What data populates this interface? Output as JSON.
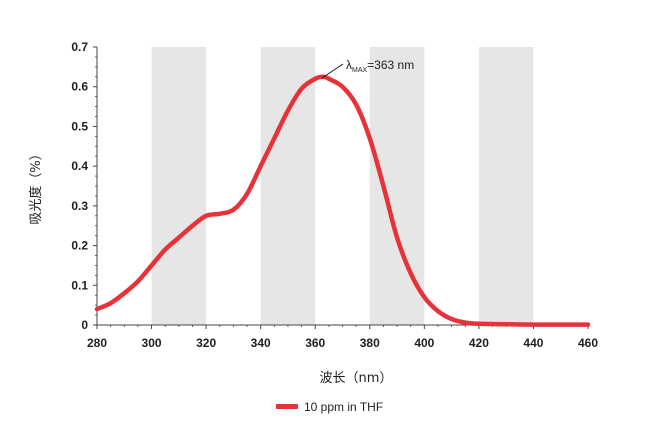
{
  "chart_data": {
    "type": "line",
    "title": "",
    "xlabel": "波长（nm）",
    "ylabel": "吸光度（%）",
    "xlim": [
      280,
      460
    ],
    "ylim": [
      0,
      0.7
    ],
    "x_ticks": [
      280,
      300,
      320,
      340,
      360,
      380,
      400,
      420,
      440,
      460
    ],
    "y_ticks": [
      0,
      0.1,
      0.2,
      0.3,
      0.4,
      0.5,
      0.6,
      0.7
    ],
    "x_tick_labels": [
      "280",
      "300",
      "320",
      "340",
      "360",
      "380",
      "400",
      "420",
      "440",
      "460"
    ],
    "y_tick_labels": [
      "0",
      "0.1",
      "0.2",
      "0.3",
      "0.4",
      "0.5",
      "0.6",
      "0.7"
    ],
    "shaded_bands": [
      [
        300,
        320
      ],
      [
        340,
        360
      ],
      [
        380,
        400
      ],
      [
        420,
        440
      ]
    ],
    "colors": {
      "series": "#e8323a",
      "band": "#e6e6e6",
      "axis": "#444444"
    },
    "series": [
      {
        "name": "10 ppm in THF",
        "x": [
          280,
          285,
          290,
          295,
          300,
          305,
          310,
          315,
          320,
          325,
          330,
          335,
          340,
          345,
          350,
          355,
          360,
          363,
          365,
          370,
          375,
          380,
          385,
          390,
          395,
          400,
          405,
          410,
          415,
          420,
          430,
          440,
          450,
          460
        ],
        "y": [
          0.04,
          0.055,
          0.08,
          0.11,
          0.15,
          0.19,
          0.22,
          0.25,
          0.275,
          0.28,
          0.29,
          0.33,
          0.4,
          0.47,
          0.54,
          0.595,
          0.62,
          0.625,
          0.62,
          0.6,
          0.555,
          0.47,
          0.35,
          0.22,
          0.13,
          0.07,
          0.035,
          0.015,
          0.006,
          0.003,
          0.002,
          0.001,
          0.001,
          0.001
        ]
      }
    ],
    "annotations": [
      {
        "symbol": "λ",
        "subscript": "MAX",
        "text": "=363 nm",
        "x": 363,
        "y": 0.625
      }
    ],
    "legend": {
      "position": "bottom-center",
      "entries": [
        "10 ppm in THF"
      ]
    }
  }
}
